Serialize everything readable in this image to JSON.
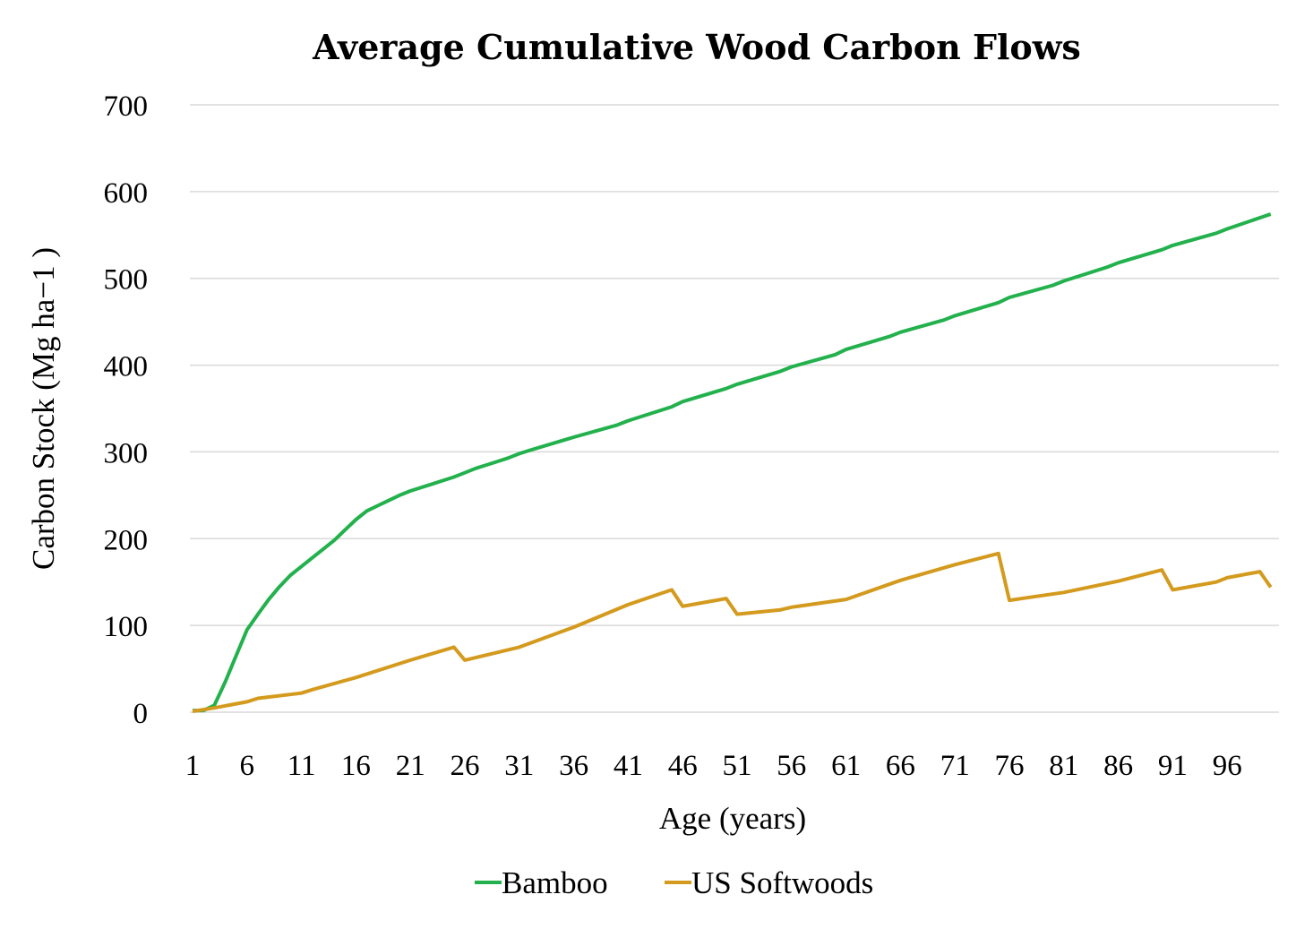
{
  "chart_data": {
    "type": "line",
    "title": "Average Cumulative Wood Carbon Flows",
    "xlabel": "Age (years)",
    "ylabel": "Carbon Stock (Mg ha−1 )",
    "x_range": [
      1,
      100
    ],
    "x_ticks": [
      1,
      6,
      11,
      16,
      21,
      26,
      31,
      36,
      41,
      46,
      51,
      56,
      61,
      66,
      71,
      76,
      81,
      86,
      91,
      96
    ],
    "ylim": [
      0,
      700
    ],
    "y_ticks": [
      0,
      100,
      200,
      300,
      400,
      500,
      600,
      700
    ],
    "grid": true,
    "legend_position": "bottom",
    "series": [
      {
        "name": "Bamboo",
        "color": "#22b14c",
        "points": [
          [
            1,
            2
          ],
          [
            2,
            2
          ],
          [
            3,
            8
          ],
          [
            4,
            35
          ],
          [
            5,
            65
          ],
          [
            6,
            95
          ],
          [
            7,
            113
          ],
          [
            8,
            130
          ],
          [
            9,
            145
          ],
          [
            10,
            158
          ],
          [
            11,
            168
          ],
          [
            12,
            178
          ],
          [
            13,
            188
          ],
          [
            14,
            198
          ],
          [
            15,
            210
          ],
          [
            16,
            222
          ],
          [
            17,
            232
          ],
          [
            18,
            238
          ],
          [
            19,
            244
          ],
          [
            20,
            250
          ],
          [
            21,
            255
          ],
          [
            22,
            259
          ],
          [
            23,
            263
          ],
          [
            24,
            267
          ],
          [
            25,
            271
          ],
          [
            26,
            276
          ],
          [
            27,
            281
          ],
          [
            28,
            285
          ],
          [
            29,
            289
          ],
          [
            30,
            293
          ],
          [
            31,
            298
          ],
          [
            32,
            302
          ],
          [
            36,
            317
          ],
          [
            40,
            331
          ],
          [
            41,
            336
          ],
          [
            45,
            352
          ],
          [
            46,
            358
          ],
          [
            50,
            373
          ],
          [
            51,
            378
          ],
          [
            55,
            393
          ],
          [
            56,
            398
          ],
          [
            60,
            412
          ],
          [
            61,
            418
          ],
          [
            65,
            433
          ],
          [
            66,
            438
          ],
          [
            70,
            452
          ],
          [
            71,
            457
          ],
          [
            75,
            472
          ],
          [
            76,
            478
          ],
          [
            80,
            492
          ],
          [
            81,
            497
          ],
          [
            85,
            513
          ],
          [
            86,
            518
          ],
          [
            90,
            533
          ],
          [
            91,
            538
          ],
          [
            95,
            552
          ],
          [
            96,
            557
          ],
          [
            100,
            574
          ]
        ]
      },
      {
        "name": "US Softwoods",
        "color": "#d49a1e",
        "points": [
          [
            1,
            1
          ],
          [
            3,
            5
          ],
          [
            6,
            12
          ],
          [
            7,
            16
          ],
          [
            11,
            22
          ],
          [
            12,
            26
          ],
          [
            16,
            40
          ],
          [
            21,
            60
          ],
          [
            25,
            75
          ],
          [
            26,
            60
          ],
          [
            31,
            75
          ],
          [
            36,
            98
          ],
          [
            41,
            124
          ],
          [
            45,
            141
          ],
          [
            46,
            122
          ],
          [
            50,
            131
          ],
          [
            51,
            113
          ],
          [
            55,
            118
          ],
          [
            56,
            121
          ],
          [
            61,
            130
          ],
          [
            66,
            152
          ],
          [
            71,
            170
          ],
          [
            75,
            183
          ],
          [
            76,
            129
          ],
          [
            81,
            138
          ],
          [
            86,
            151
          ],
          [
            90,
            164
          ],
          [
            91,
            141
          ],
          [
            95,
            150
          ],
          [
            96,
            155
          ],
          [
            99,
            162
          ],
          [
            100,
            144
          ]
        ]
      }
    ]
  }
}
